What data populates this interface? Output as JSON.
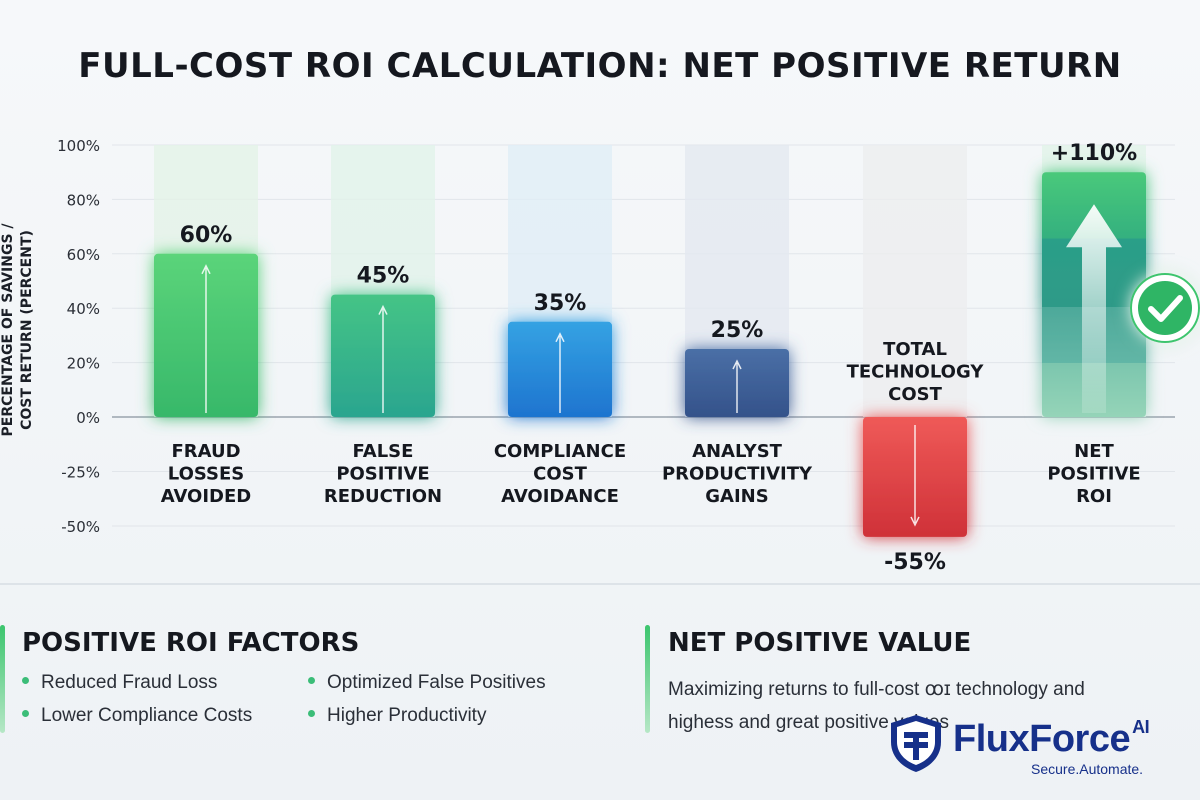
{
  "title": "FULL-COST ROI CALCULATION: NET POSITIVE RETURN",
  "chart_data": {
    "type": "bar",
    "ylabel": "PERCENTAGE OF SAVINGS / COST RETURN (PERCENT)",
    "yticks": [
      "100%",
      "80%",
      "60%",
      "40%",
      "20%",
      "0%",
      "-25%",
      "-50%"
    ],
    "categories": [
      {
        "label": [
          "FRAUD",
          "LOSSES",
          "AVOIDED"
        ],
        "value": 60,
        "value_label": "60%",
        "color": "#4cc86f"
      },
      {
        "label": [
          "FALSE",
          "POSITIVE",
          "REDUCTION"
        ],
        "value": 45,
        "value_label": "45%",
        "color": "#35b487"
      },
      {
        "label": [
          "COMPLIANCE",
          "COST",
          "AVOIDANCE"
        ],
        "value": 35,
        "value_label": "35%",
        "color": "#2b87d6"
      },
      {
        "label": [
          "ANALYST",
          "PRODUCTIVITY",
          "GAINS"
        ],
        "value": 25,
        "value_label": "25%",
        "color": "#3e5f95"
      },
      {
        "label": [
          "TOTAL",
          "TECHNOLOGY",
          "COST"
        ],
        "value": -55,
        "value_label": "-55%",
        "color": "#de4548"
      },
      {
        "label": [
          "NET",
          "POSITIVE",
          "ROI"
        ],
        "value": 110,
        "value_label": "+110%",
        "color": "#3cb97a"
      }
    ],
    "grid": true
  },
  "factors_panel": {
    "title": "POSITIVE ROI FACTORS",
    "items": [
      "Reduced Fraud Loss",
      "Optimized False Positives",
      "Lower Compliance Costs",
      "Higher Productivity"
    ]
  },
  "value_panel": {
    "title": "NET POSITIVE VALUE",
    "text": "Maximizing returns to full-cost ꝏɪ technology and highess and great positive values"
  },
  "logo": {
    "name": "FluxForce",
    "superscript": "AI",
    "tagline": "Secure.Automate.",
    "color": "#16308a"
  }
}
